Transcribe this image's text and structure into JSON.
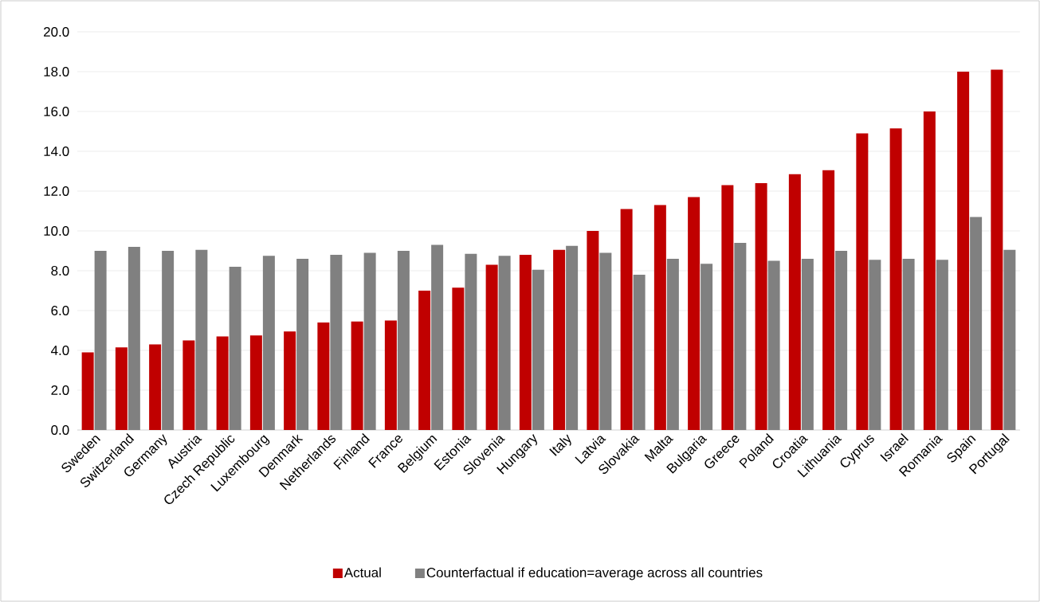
{
  "chart_data": {
    "type": "bar",
    "categories": [
      "Sweden",
      "Switzerland",
      "Germany",
      "Austria",
      "Czech Republic",
      "Luxembourg",
      "Denmark",
      "Netherlands",
      "Finland",
      "France",
      "Belgium",
      "Estonia",
      "Slovenia",
      "Hungary",
      "Italy",
      "Latvia",
      "Slovakia",
      "Malta",
      "Bulgaria",
      "Greece",
      "Poland",
      "Croatia",
      "Lithuania",
      "Cyprus",
      "Israel",
      "Romania",
      "Spain",
      "Portugal"
    ],
    "series": [
      {
        "name": "Actual",
        "color": "#c00000",
        "values": [
          3.9,
          4.15,
          4.3,
          4.5,
          4.7,
          4.75,
          4.95,
          5.4,
          5.45,
          5.5,
          7.0,
          7.15,
          8.3,
          8.8,
          9.05,
          10.0,
          11.1,
          11.3,
          11.7,
          12.3,
          12.4,
          12.85,
          13.05,
          14.9,
          15.15,
          16.0,
          18.0,
          18.1
        ]
      },
      {
        "name": "Counterfactual if education=average across all countries",
        "color": "#808080",
        "values": [
          9.0,
          9.2,
          9.0,
          9.05,
          8.2,
          8.75,
          8.6,
          8.8,
          8.9,
          9.0,
          9.3,
          8.85,
          8.75,
          8.05,
          9.25,
          8.9,
          7.8,
          8.6,
          8.35,
          9.4,
          8.5,
          8.6,
          9.0,
          8.55,
          8.6,
          8.55,
          10.7,
          9.05
        ]
      }
    ],
    "ylim": [
      0,
      20
    ],
    "yticks": [
      {
        "value": 0,
        "label": "0.0"
      },
      {
        "value": 2,
        "label": "2.0"
      },
      {
        "value": 4,
        "label": "4.0"
      },
      {
        "value": 6,
        "label": "6.0"
      },
      {
        "value": 8,
        "label": "8.0"
      },
      {
        "value": 10,
        "label": "10.0"
      },
      {
        "value": 12,
        "label": "12.0"
      },
      {
        "value": 14,
        "label": "14.0"
      },
      {
        "value": 16,
        "label": "16.0"
      },
      {
        "value": 18,
        "label": "18.0"
      },
      {
        "value": 20,
        "label": "20.0"
      }
    ],
    "grid": "y",
    "legend": "bottom"
  }
}
